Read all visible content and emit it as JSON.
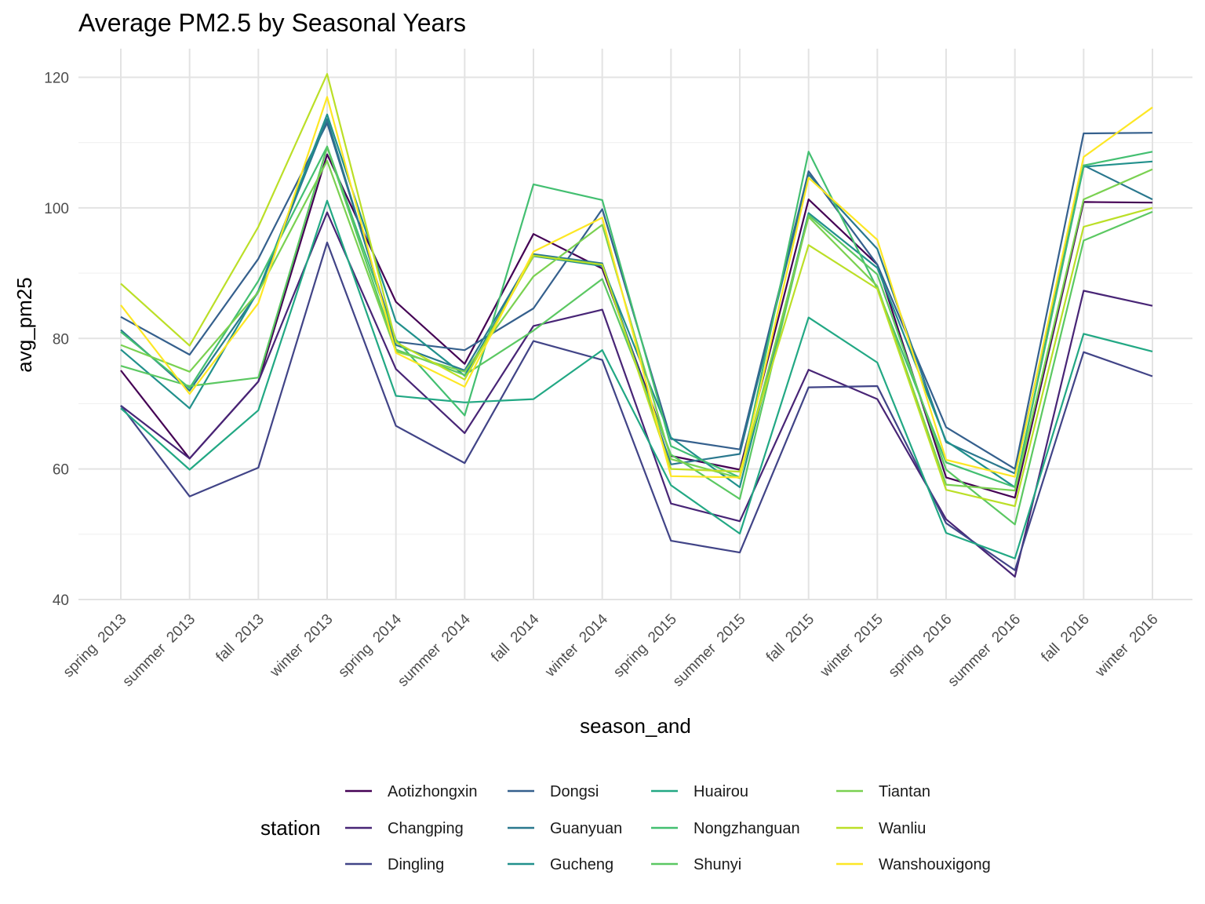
{
  "chart_data": {
    "type": "line",
    "title": "Average PM2.5 by Seasonal Years",
    "xlabel": "season_and",
    "ylabel": "avg_pm25",
    "ylim": [
      40,
      124
    ],
    "yticks": [
      40,
      60,
      80,
      100,
      120
    ],
    "categories": [
      "spring  2013",
      "summer  2013",
      "fall  2013",
      "winter  2013",
      "spring  2014",
      "summer  2014",
      "fall  2014",
      "winter  2014",
      "spring  2015",
      "summer  2015",
      "fall  2015",
      "winter  2015",
      "spring  2016",
      "summer  2016",
      "fall  2016",
      "winter  2016"
    ],
    "legend": {
      "title": "station",
      "position": "bottom"
    },
    "series": [
      {
        "name": "Aotizhongxin",
        "color": "#440154",
        "values": [
          75.1,
          61.6,
          73.4,
          108.2,
          85.6,
          76.1,
          96.0,
          90.7,
          62.0,
          59.9,
          101.3,
          91.3,
          58.7,
          55.6,
          100.9,
          100.8
        ]
      },
      {
        "name": "Changping",
        "color": "#482576",
        "values": [
          69.7,
          61.6,
          73.4,
          99.3,
          75.3,
          65.5,
          81.9,
          84.4,
          54.7,
          52.0,
          75.2,
          70.7,
          52.3,
          43.5,
          87.3,
          85.0
        ]
      },
      {
        "name": "Dingling",
        "color": "#414487",
        "values": [
          69.7,
          55.8,
          60.2,
          94.7,
          66.6,
          60.9,
          79.6,
          76.7,
          49.0,
          47.2,
          72.5,
          72.7,
          51.7,
          44.5,
          77.9,
          74.2
        ]
      },
      {
        "name": "Dongsi",
        "color": "#35608D",
        "values": [
          83.3,
          77.5,
          92.2,
          113.0,
          79.5,
          78.2,
          84.6,
          99.8,
          64.6,
          63.0,
          105.6,
          91.3,
          66.4,
          60.0,
          111.4,
          111.5
        ]
      },
      {
        "name": "Guanyuan",
        "color": "#2A788E",
        "values": [
          81.3,
          72.0,
          87.1,
          113.6,
          79.0,
          75.1,
          92.9,
          91.5,
          60.7,
          62.3,
          105.1,
          93.7,
          64.1,
          59.3,
          106.5,
          101.3
        ]
      },
      {
        "name": "Gucheng",
        "color": "#21908C",
        "values": [
          78.3,
          69.3,
          87.3,
          114.3,
          82.6,
          74.3,
          92.6,
          91.1,
          64.8,
          57.2,
          99.2,
          90.8,
          64.3,
          57.2,
          106.3,
          107.1
        ]
      },
      {
        "name": "Huairou",
        "color": "#22A884",
        "values": [
          69.3,
          59.9,
          69.0,
          101.1,
          71.2,
          70.2,
          70.7,
          78.2,
          57.5,
          50.1,
          83.2,
          76.3,
          50.2,
          46.3,
          80.7,
          78.0
        ]
      },
      {
        "name": "Nongzhanguan",
        "color": "#43BF71",
        "values": [
          81.0,
          72.4,
          88.8,
          109.4,
          79.8,
          68.2,
          103.6,
          101.2,
          63.5,
          58.7,
          108.6,
          87.6,
          61.0,
          57.2,
          106.5,
          108.6
        ]
      },
      {
        "name": "Shunyi",
        "color": "#5BC862",
        "values": [
          75.8,
          72.7,
          74.0,
          109.3,
          78.3,
          74.4,
          81.2,
          89.1,
          62.2,
          55.4,
          98.9,
          89.8,
          59.9,
          51.5,
          95.0,
          99.4
        ]
      },
      {
        "name": "Tiantan",
        "color": "#7AD151",
        "values": [
          79.0,
          74.9,
          87.1,
          107.2,
          78.0,
          74.9,
          89.5,
          97.4,
          61.5,
          58.6,
          98.6,
          88.0,
          57.6,
          56.7,
          101.3,
          105.9
        ]
      },
      {
        "name": "Wanliu",
        "color": "#BBDF27",
        "values": [
          88.4,
          78.9,
          97.1,
          120.5,
          79.4,
          73.7,
          92.7,
          91.3,
          60.0,
          59.6,
          94.3,
          87.6,
          56.8,
          54.3,
          97.1,
          100.0
        ]
      },
      {
        "name": "Wanshouxigong",
        "color": "#FDE725",
        "values": [
          85.1,
          71.5,
          85.4,
          117.0,
          77.8,
          72.6,
          93.3,
          98.5,
          58.9,
          58.7,
          104.6,
          95.1,
          61.4,
          58.8,
          107.8,
          115.4
        ]
      }
    ]
  }
}
